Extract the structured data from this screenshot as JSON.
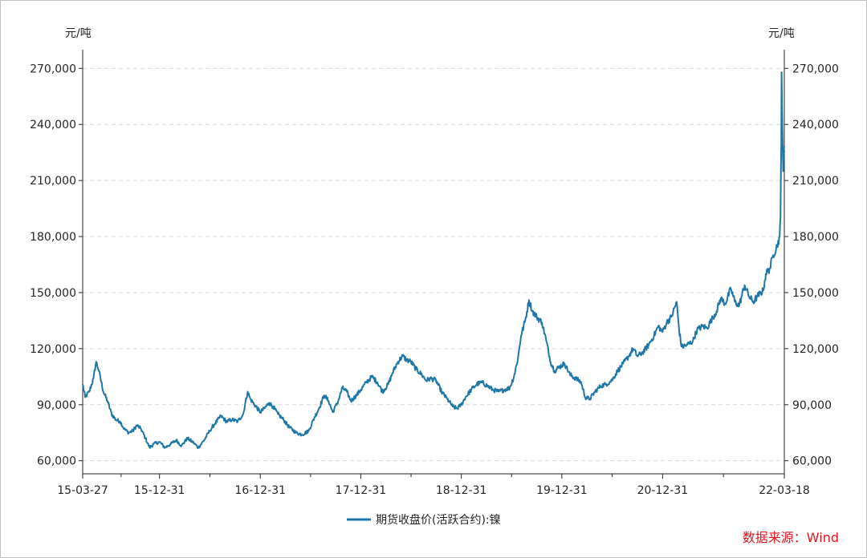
{
  "chart_data": {
    "type": "line",
    "left_unit": "元/吨",
    "right_unit": "元/吨",
    "y_ticks": [
      60000,
      90000,
      120000,
      150000,
      180000,
      210000,
      240000,
      270000
    ],
    "y_tick_labels": [
      "60,000",
      "90,000",
      "120,000",
      "150,000",
      "180,000",
      "210,000",
      "240,000",
      "270,000"
    ],
    "ylim": [
      53000,
      280000
    ],
    "x_start": "2015-03-27",
    "x_end": "2022-03-18",
    "x_ticks": [
      "2015-03-27",
      "2015-12-31",
      "2016-12-31",
      "2017-12-31",
      "2018-12-31",
      "2019-12-31",
      "2020-12-31",
      "2022-03-18"
    ],
    "x_tick_labels": [
      "15-03-27",
      "15-12-31",
      "16-12-31",
      "17-12-31",
      "18-12-31",
      "19-12-31",
      "20-12-31",
      "22-03-18"
    ],
    "grid": "horizontal-dashed",
    "legend_position": "bottom",
    "color": "#1f77a8",
    "series": [
      {
        "name": "期货收盘价(活跃合约):镍",
        "points": [
          [
            "2015-03-27",
            101000
          ],
          [
            "2015-04-05",
            94000
          ],
          [
            "2015-04-20",
            97000
          ],
          [
            "2015-05-05",
            104000
          ],
          [
            "2015-05-15",
            113000
          ],
          [
            "2015-05-25",
            108000
          ],
          [
            "2015-06-10",
            97000
          ],
          [
            "2015-06-25",
            92000
          ],
          [
            "2015-07-10",
            85000
          ],
          [
            "2015-07-25",
            82000
          ],
          [
            "2015-08-10",
            81000
          ],
          [
            "2015-08-25",
            77000
          ],
          [
            "2015-09-10",
            75000
          ],
          [
            "2015-09-25",
            76000
          ],
          [
            "2015-10-10",
            79000
          ],
          [
            "2015-10-25",
            77000
          ],
          [
            "2015-11-10",
            72000
          ],
          [
            "2015-11-25",
            67000
          ],
          [
            "2015-12-10",
            69000
          ],
          [
            "2015-12-31",
            70000
          ],
          [
            "2016-01-20",
            67000
          ],
          [
            "2016-02-10",
            69000
          ],
          [
            "2016-03-01",
            71000
          ],
          [
            "2016-03-20",
            68000
          ],
          [
            "2016-04-10",
            72000
          ],
          [
            "2016-04-30",
            70000
          ],
          [
            "2016-05-20",
            67000
          ],
          [
            "2016-06-10",
            71000
          ],
          [
            "2016-06-30",
            76000
          ],
          [
            "2016-07-20",
            80000
          ],
          [
            "2016-08-10",
            84000
          ],
          [
            "2016-08-30",
            81000
          ],
          [
            "2016-09-20",
            82000
          ],
          [
            "2016-10-10",
            81000
          ],
          [
            "2016-10-30",
            85000
          ],
          [
            "2016-11-15",
            97000
          ],
          [
            "2016-11-25",
            93000
          ],
          [
            "2016-12-10",
            90000
          ],
          [
            "2016-12-31",
            86000
          ],
          [
            "2017-01-15",
            88000
          ],
          [
            "2017-02-01",
            91000
          ],
          [
            "2017-02-15",
            89000
          ],
          [
            "2017-03-05",
            85000
          ],
          [
            "2017-03-25",
            82000
          ],
          [
            "2017-04-15",
            78000
          ],
          [
            "2017-05-10",
            75000
          ],
          [
            "2017-06-01",
            74000
          ],
          [
            "2017-06-25",
            76000
          ],
          [
            "2017-07-15",
            83000
          ],
          [
            "2017-08-01",
            88000
          ],
          [
            "2017-08-20",
            95000
          ],
          [
            "2017-09-05",
            92000
          ],
          [
            "2017-09-20",
            86000
          ],
          [
            "2017-10-10",
            92000
          ],
          [
            "2017-10-25",
            99000
          ],
          [
            "2017-11-10",
            97000
          ],
          [
            "2017-11-25",
            92000
          ],
          [
            "2017-12-15",
            95000
          ],
          [
            "2017-12-31",
            98000
          ],
          [
            "2018-01-20",
            102000
          ],
          [
            "2018-02-10",
            105000
          ],
          [
            "2018-03-01",
            102000
          ],
          [
            "2018-03-20",
            97000
          ],
          [
            "2018-04-10",
            101000
          ],
          [
            "2018-04-25",
            107000
          ],
          [
            "2018-05-15",
            113000
          ],
          [
            "2018-06-01",
            116000
          ],
          [
            "2018-06-15",
            114000
          ],
          [
            "2018-07-01",
            113000
          ],
          [
            "2018-07-20",
            109000
          ],
          [
            "2018-08-10",
            106000
          ],
          [
            "2018-08-25",
            103000
          ],
          [
            "2018-09-10",
            104000
          ],
          [
            "2018-09-30",
            103000
          ],
          [
            "2018-10-20",
            97000
          ],
          [
            "2018-11-10",
            93000
          ],
          [
            "2018-11-30",
            89000
          ],
          [
            "2018-12-15",
            88000
          ],
          [
            "2018-12-31",
            90000
          ],
          [
            "2019-01-15",
            94000
          ],
          [
            "2019-02-05",
            98000
          ],
          [
            "2019-02-25",
            101000
          ],
          [
            "2019-03-15",
            102000
          ],
          [
            "2019-04-05",
            100000
          ],
          [
            "2019-04-25",
            98000
          ],
          [
            "2019-05-15",
            97000
          ],
          [
            "2019-06-05",
            98000
          ],
          [
            "2019-06-25",
            99000
          ],
          [
            "2019-07-10",
            105000
          ],
          [
            "2019-07-25",
            115000
          ],
          [
            "2019-08-05",
            127000
          ],
          [
            "2019-08-20",
            135000
          ],
          [
            "2019-09-03",
            146000
          ],
          [
            "2019-09-15",
            140000
          ],
          [
            "2019-10-01",
            137000
          ],
          [
            "2019-10-20",
            134000
          ],
          [
            "2019-11-05",
            124000
          ],
          [
            "2019-11-20",
            113000
          ],
          [
            "2019-12-05",
            108000
          ],
          [
            "2019-12-20",
            110000
          ],
          [
            "2020-01-10",
            112000
          ],
          [
            "2020-01-30",
            106000
          ],
          [
            "2020-02-20",
            104000
          ],
          [
            "2020-03-10",
            102000
          ],
          [
            "2020-03-25",
            94000
          ],
          [
            "2020-04-10",
            93000
          ],
          [
            "2020-04-30",
            97000
          ],
          [
            "2020-05-20",
            100000
          ],
          [
            "2020-06-10",
            101000
          ],
          [
            "2020-06-30",
            103000
          ],
          [
            "2020-07-20",
            108000
          ],
          [
            "2020-08-10",
            112000
          ],
          [
            "2020-08-30",
            116000
          ],
          [
            "2020-09-15",
            120000
          ],
          [
            "2020-09-30",
            116000
          ],
          [
            "2020-10-20",
            118000
          ],
          [
            "2020-11-10",
            122000
          ],
          [
            "2020-11-30",
            127000
          ],
          [
            "2020-12-15",
            132000
          ],
          [
            "2020-12-31",
            129000
          ],
          [
            "2021-01-15",
            134000
          ],
          [
            "2021-02-01",
            137000
          ],
          [
            "2021-02-20",
            145000
          ],
          [
            "2021-03-01",
            130000
          ],
          [
            "2021-03-10",
            121000
          ],
          [
            "2021-03-30",
            122000
          ],
          [
            "2021-04-20",
            124000
          ],
          [
            "2021-05-05",
            130000
          ],
          [
            "2021-05-25",
            132000
          ],
          [
            "2021-06-10",
            131000
          ],
          [
            "2021-06-25",
            135000
          ],
          [
            "2021-07-15",
            140000
          ],
          [
            "2021-07-30",
            147000
          ],
          [
            "2021-08-15",
            144000
          ],
          [
            "2021-09-05",
            152000
          ],
          [
            "2021-09-20",
            145000
          ],
          [
            "2021-10-05",
            143000
          ],
          [
            "2021-10-25",
            154000
          ],
          [
            "2021-11-10",
            148000
          ],
          [
            "2021-11-25",
            145000
          ],
          [
            "2021-12-10",
            148000
          ],
          [
            "2021-12-31",
            151000
          ],
          [
            "2022-01-10",
            160000
          ],
          [
            "2022-01-25",
            163000
          ],
          [
            "2022-02-05",
            170000
          ],
          [
            "2022-02-20",
            175000
          ],
          [
            "2022-03-01",
            180000
          ],
          [
            "2022-03-04",
            190000
          ],
          [
            "2022-03-07",
            230000
          ],
          [
            "2022-03-08",
            268000
          ],
          [
            "2022-03-10",
            245000
          ],
          [
            "2022-03-14",
            215000
          ],
          [
            "2022-03-16",
            228000
          ],
          [
            "2022-03-18",
            225000
          ]
        ]
      }
    ]
  },
  "source": "数据来源：Wind"
}
